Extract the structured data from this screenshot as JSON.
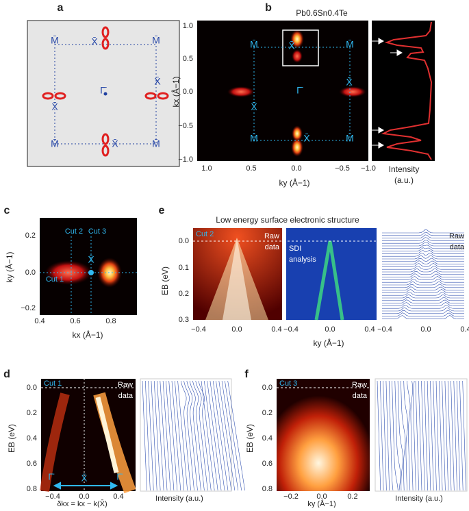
{
  "panels": {
    "a": {
      "label": "a",
      "symbols": [
        "M̄",
        "X̄",
        "M̄",
        "X̄",
        "Γ̄",
        "X̄",
        "M̄",
        "X̄",
        "M̄"
      ]
    },
    "b": {
      "label": "b",
      "title": "Pb0.6Sn0.4Te",
      "symbols": [
        "M̄",
        "X̄",
        "M̄",
        "X̄",
        "Γ̄",
        "X̄",
        "M̄",
        "X̄",
        "M̄"
      ],
      "y_axis_label": "kx (Å−1)",
      "x_axis_label": "ky (Å−1)",
      "y_ticks": [
        "1.0",
        "0.5",
        "0.0",
        "−0.5",
        "−1.0"
      ],
      "x_ticks": [
        "1.0",
        "0.5",
        "0.0",
        "−0.5",
        "−1.0"
      ],
      "side_label": [
        "Intensity",
        "(a.u.)"
      ]
    },
    "c": {
      "label": "c",
      "cuts": [
        "Cut 2",
        "Cut 3",
        "Cut 1"
      ],
      "symbol": "X̄",
      "y_axis_label": "ky (Å−1)",
      "x_axis_label": "kx (Å−1)",
      "y_ticks": [
        "0.2",
        "0.0",
        "−0.2"
      ],
      "x_ticks": [
        "0.4",
        "0.6",
        "0.8"
      ]
    },
    "e": {
      "label": "e",
      "title": "Low energy surface electronic structure",
      "cut": "Cut 2",
      "raw_label": [
        "Raw",
        "data"
      ],
      "sdi_label": [
        "SDI",
        "analysis"
      ],
      "raw_label_2": [
        "Raw",
        "data"
      ],
      "y_axis_label": "EB (eV)",
      "x_axis_label": "ky (Å−1)",
      "y_ticks": [
        "0.0",
        "0.1",
        "0.2",
        "0.3"
      ],
      "x_ticks": [
        "−0.4",
        "0.0",
        "0.4"
      ]
    },
    "d": {
      "label": "d",
      "cut": "Cut 1",
      "raw_label": [
        "Raw",
        "data"
      ],
      "path_symbols": [
        "Γ̄",
        "X̄",
        "Γ̄"
      ],
      "y_axis_label": "EB (eV)",
      "x_axis_label": "δkx = kx − k(X̄)",
      "side_label": "Intensity (a.u.)",
      "y_ticks": [
        "0.0",
        "0.2",
        "0.4",
        "0.6",
        "0.8"
      ],
      "x_ticks": [
        "−0.4",
        "0.0",
        "0.4"
      ]
    },
    "f": {
      "label": "f",
      "cut": "Cut 3",
      "raw_label": [
        "Raw",
        "data"
      ],
      "y_axis_label": "EB (eV)",
      "x_axis_label": "ky (Å−1)",
      "side_label": "Intensity (a.u.)",
      "y_ticks": [
        "0.0",
        "0.2",
        "0.4",
        "0.6",
        "0.8"
      ],
      "x_ticks": [
        "−0.2",
        "0.0",
        "0.2"
      ]
    }
  }
}
